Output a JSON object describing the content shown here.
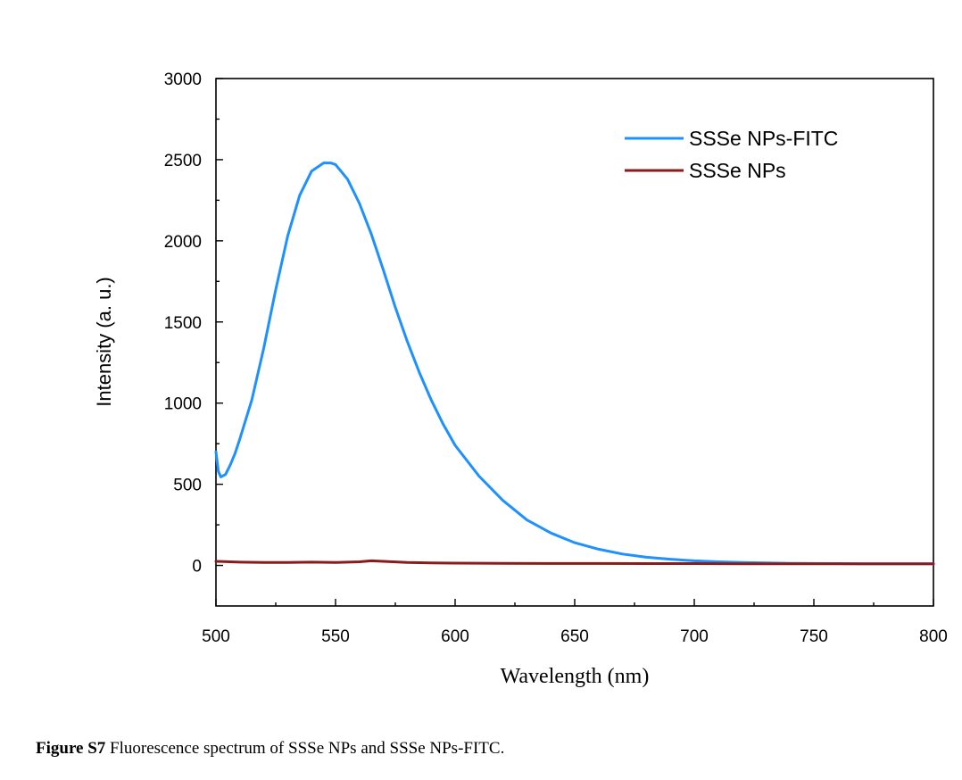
{
  "chart_data": {
    "type": "line",
    "xlabel": "Wavelength (nm)",
    "ylabel": "Intensity (a. u.)",
    "xlim": [
      500,
      800
    ],
    "ylim": [
      -250,
      3000
    ],
    "xticks": [
      500,
      550,
      600,
      650,
      700,
      750,
      800
    ],
    "yticks": [
      0,
      500,
      1000,
      1500,
      2000,
      2500,
      3000
    ],
    "grid": false,
    "legend_position": "top-right",
    "series": [
      {
        "name": "SSSe NPs-FITC",
        "color": "#1e90ff",
        "x": [
          500,
          501,
          502,
          504,
          506,
          508,
          510,
          515,
          520,
          525,
          530,
          535,
          540,
          545,
          548,
          550,
          555,
          560,
          565,
          570,
          575,
          580,
          585,
          590,
          595,
          600,
          610,
          620,
          630,
          640,
          650,
          660,
          670,
          680,
          690,
          700,
          710,
          720,
          730,
          740,
          750,
          760,
          770,
          780,
          790,
          800
        ],
        "y": [
          700,
          580,
          545,
          560,
          620,
          690,
          780,
          1020,
          1340,
          1700,
          2030,
          2280,
          2430,
          2480,
          2480,
          2470,
          2380,
          2230,
          2040,
          1820,
          1590,
          1380,
          1190,
          1020,
          870,
          740,
          550,
          400,
          280,
          200,
          140,
          100,
          70,
          50,
          38,
          28,
          22,
          18,
          15,
          13,
          12,
          11,
          10,
          10,
          10,
          10
        ]
      },
      {
        "name": "SSSe NPs",
        "color": "#8b1a1a",
        "x": [
          500,
          510,
          520,
          530,
          540,
          550,
          560,
          565,
          570,
          580,
          590,
          600,
          620,
          640,
          660,
          680,
          700,
          720,
          740,
          760,
          780,
          800
        ],
        "y": [
          25,
          20,
          18,
          18,
          20,
          18,
          22,
          28,
          25,
          18,
          15,
          14,
          13,
          12,
          12,
          11,
          11,
          10,
          10,
          10,
          10,
          10
        ]
      }
    ]
  },
  "caption": {
    "label": "Figure S7",
    "text": " Fluorescence spectrum of SSSe NPs and SSSe NPs-FITC."
  }
}
